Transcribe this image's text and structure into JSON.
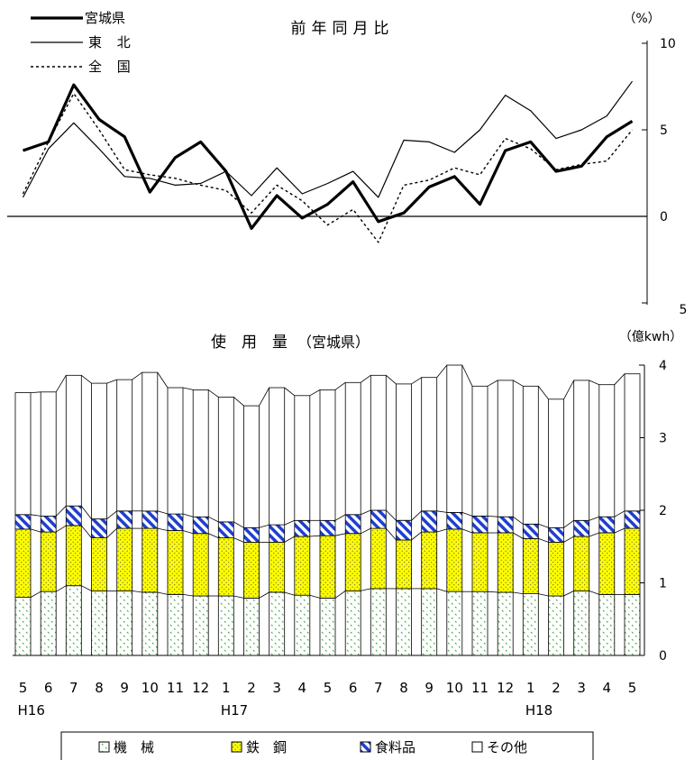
{
  "x_labels": [
    "5",
    "6",
    "7",
    "8",
    "9",
    "10",
    "11",
    "12",
    "1",
    "2",
    "3",
    "4",
    "5",
    "6",
    "7",
    "8",
    "9",
    "10",
    "11",
    "12",
    "1",
    "2",
    "3",
    "4",
    "5"
  ],
  "year_labels": [
    {
      "text": "H16",
      "index": 0
    },
    {
      "text": "H17",
      "index": 8
    },
    {
      "text": "H18",
      "index": 20
    }
  ],
  "chart_data": [
    {
      "type": "line",
      "title": "前年同月比",
      "unit": "（%）",
      "ylim": [
        -10,
        10
      ],
      "y_ticks": [
        10,
        5,
        0
      ],
      "y_bottom_label": "5",
      "series": [
        {
          "name": "宮城県",
          "style": "thick",
          "color": "#000000",
          "values": [
            3.8,
            4.3,
            7.6,
            5.6,
            4.6,
            1.4,
            3.4,
            4.3,
            2.6,
            -0.7,
            1.2,
            -0.1,
            0.7,
            2.0,
            -0.3,
            0.2,
            1.7,
            2.3,
            0.7,
            3.8,
            4.3,
            2.6,
            2.9,
            4.6,
            5.5
          ]
        },
        {
          "name": "東 北",
          "style": "thin",
          "color": "#000000",
          "values": [
            1.1,
            3.9,
            5.4,
            3.9,
            2.3,
            2.2,
            1.8,
            1.9,
            2.6,
            1.2,
            2.8,
            1.3,
            1.9,
            2.6,
            1.1,
            4.4,
            4.3,
            3.7,
            5.0,
            7.0,
            6.1,
            4.5,
            5.0,
            5.8,
            7.8
          ]
        },
        {
          "name": "全 国",
          "style": "dashed",
          "color": "#000000",
          "values": [
            1.3,
            4.3,
            7.1,
            5.0,
            2.7,
            2.4,
            2.2,
            1.8,
            1.5,
            0.2,
            1.8,
            0.9,
            -0.5,
            0.4,
            -1.5,
            1.8,
            2.1,
            2.8,
            2.4,
            4.5,
            3.9,
            2.7,
            3.0,
            3.2,
            5.0
          ]
        }
      ]
    },
    {
      "type": "bar",
      "stacked": true,
      "title": "使　用　量",
      "title_suffix": "（宮城県）",
      "unit": "（億kwh）",
      "ylim": [
        0,
        4
      ],
      "y_ticks": [
        4,
        3,
        2,
        1,
        0
      ],
      "series": [
        {
          "name": "機　械",
          "legend": "機　械",
          "fill": "machinery",
          "values": [
            0.8,
            0.88,
            0.96,
            0.89,
            0.89,
            0.87,
            0.84,
            0.82,
            0.82,
            0.79,
            0.87,
            0.83,
            0.79,
            0.89,
            0.92,
            0.92,
            0.92,
            0.88,
            0.88,
            0.87,
            0.85,
            0.82,
            0.89,
            0.84,
            0.84
          ]
        },
        {
          "name": "鉄　鋼",
          "legend": "鉄　鋼",
          "fill": "steel",
          "values": [
            0.94,
            0.82,
            0.83,
            0.73,
            0.86,
            0.88,
            0.88,
            0.86,
            0.8,
            0.77,
            0.69,
            0.81,
            0.86,
            0.79,
            0.83,
            0.67,
            0.78,
            0.86,
            0.81,
            0.82,
            0.76,
            0.74,
            0.75,
            0.85,
            0.91
          ]
        },
        {
          "name": "食料品",
          "legend": "食料品",
          "fill": "food",
          "values": [
            0.2,
            0.22,
            0.27,
            0.26,
            0.24,
            0.24,
            0.23,
            0.23,
            0.22,
            0.2,
            0.24,
            0.22,
            0.21,
            0.26,
            0.25,
            0.27,
            0.29,
            0.23,
            0.23,
            0.22,
            0.2,
            0.2,
            0.22,
            0.22,
            0.24
          ]
        },
        {
          "name": "その他",
          "legend": "その他",
          "fill": "other",
          "values": [
            1.68,
            1.71,
            1.8,
            1.87,
            1.81,
            1.91,
            1.74,
            1.75,
            1.72,
            1.68,
            1.89,
            1.72,
            1.8,
            1.82,
            1.86,
            1.88,
            1.84,
            2.03,
            1.79,
            1.88,
            1.9,
            1.77,
            1.93,
            1.82,
            1.89
          ]
        }
      ]
    }
  ],
  "legend_items": [
    "機　械",
    "鉄　鋼",
    "食料品",
    "その他"
  ],
  "colors": {
    "steel": "#ffff00",
    "food": "#1f3fd0",
    "machinery_dots": "#3aa43a",
    "line": "#000000"
  }
}
